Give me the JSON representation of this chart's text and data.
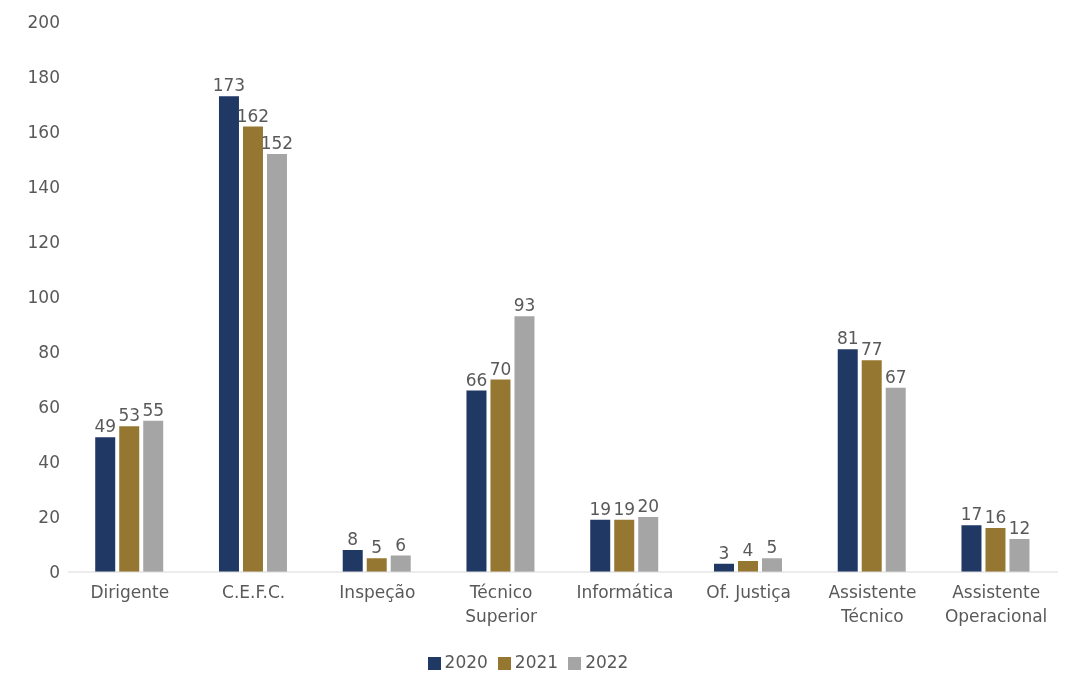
{
  "chart_data": {
    "type": "bar",
    "categories": [
      "Dirigente",
      "C.E.F.C.",
      "Inspeção",
      "Técnico Superior",
      "Informática",
      "Of. Justiça",
      "Assistente Técnico",
      "Assistente Operacional"
    ],
    "series": [
      {
        "name": "2020",
        "color": "#1f3864",
        "values": [
          49,
          173,
          8,
          66,
          19,
          3,
          81,
          17
        ]
      },
      {
        "name": "2021",
        "color": "#967732",
        "values": [
          53,
          162,
          5,
          70,
          19,
          4,
          77,
          16
        ]
      },
      {
        "name": "2022",
        "color": "#a5a5a5",
        "values": [
          55,
          152,
          6,
          93,
          20,
          5,
          67,
          12
        ]
      }
    ],
    "ylim": [
      0,
      200
    ],
    "yticks": [
      0,
      20,
      40,
      60,
      80,
      100,
      120,
      140,
      160,
      180,
      200
    ],
    "grid": false,
    "legend": "bottom",
    "data_labels": true
  }
}
